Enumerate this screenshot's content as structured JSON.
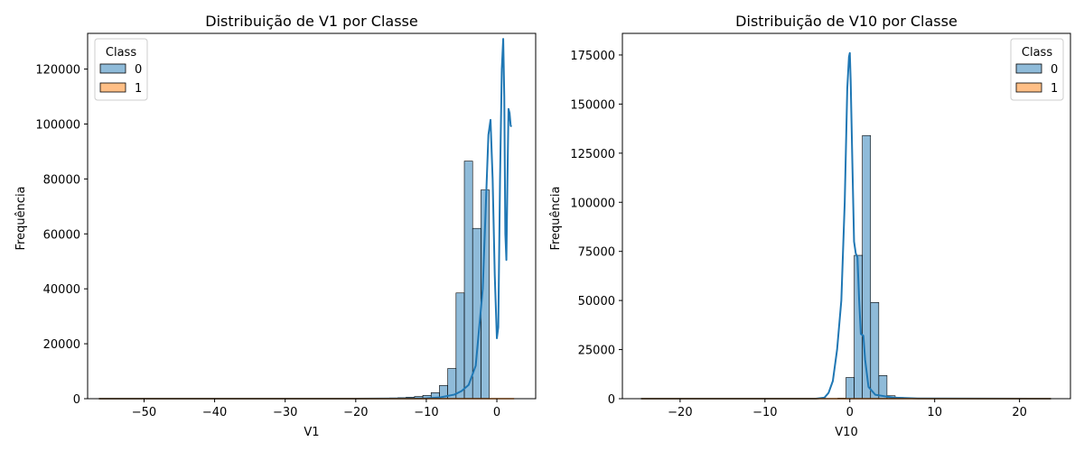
{
  "chart_data": [
    {
      "type": "bar",
      "title": "Distribuição de V1 por Classe",
      "xlabel": "V1",
      "ylabel": "Frequência",
      "xlim": [
        -58,
        5.5
      ],
      "ylim": [
        0,
        133000
      ],
      "xticks": [
        -50,
        -40,
        -30,
        -20,
        -10,
        0
      ],
      "yticks": [
        0,
        20000,
        40000,
        60000,
        80000,
        100000,
        120000
      ],
      "legend": {
        "title": "Class",
        "position": "top-left",
        "entries": [
          "0",
          "1"
        ]
      },
      "colors": {
        "0": "#1f77b4",
        "1": "#ff7f0e"
      },
      "bin_range": [
        -56.4,
        2.45
      ],
      "bin_count": 50,
      "series": [
        {
          "name": "0",
          "values": [
            1,
            1,
            1,
            1,
            1,
            1,
            1,
            1,
            1,
            1,
            1,
            1,
            1,
            1,
            1,
            1,
            1,
            2,
            2,
            3,
            3,
            4,
            5,
            6,
            8,
            10,
            14,
            18,
            25,
            35,
            50,
            70,
            95,
            130,
            180,
            260,
            380,
            550,
            800,
            1200,
            2200,
            4800,
            11000,
            38500,
            86500,
            62000,
            76000,
            0,
            0,
            0
          ]
        },
        {
          "name": "1",
          "values": [
            0,
            0,
            0,
            0,
            0,
            0,
            0,
            0,
            0,
            0,
            0,
            0,
            0,
            0,
            0,
            0,
            0,
            0,
            0,
            0,
            0,
            0,
            0,
            0,
            0,
            0,
            0,
            0,
            0,
            0,
            0,
            0,
            0,
            0,
            0,
            0,
            0,
            0,
            5,
            10,
            20,
            30,
            40,
            60,
            80,
            90,
            100,
            0,
            0,
            0
          ]
        }
      ],
      "kde_points": [
        [
          -56.4,
          0
        ],
        [
          -20,
          0
        ],
        [
          -10,
          120
        ],
        [
          -8,
          500
        ],
        [
          -6,
          1500
        ],
        [
          -5,
          2800
        ],
        [
          -4,
          5000
        ],
        [
          -3,
          12000
        ],
        [
          -2,
          40000
        ],
        [
          -1.5,
          75000
        ],
        [
          -1.2,
          96000
        ],
        [
          -0.9,
          101500
        ],
        [
          -0.6,
          80000
        ],
        [
          -0.3,
          45000
        ],
        [
          0,
          22000
        ],
        [
          0.2,
          26000
        ],
        [
          0.45,
          80000
        ],
        [
          0.7,
          120000
        ],
        [
          0.9,
          131000
        ],
        [
          1.05,
          110000
        ],
        [
          1.2,
          60000
        ],
        [
          1.35,
          50500
        ],
        [
          1.5,
          80000
        ],
        [
          1.65,
          105500
        ],
        [
          1.8,
          104000
        ],
        [
          1.95,
          99500
        ],
        [
          2.05,
          99000
        ]
      ]
    },
    {
      "type": "bar",
      "title": "Distribuição de V10 por Classe",
      "xlabel": "V10",
      "ylabel": "Frequência",
      "xlim": [
        -26.8,
        26.0
      ],
      "ylim": [
        0,
        186000
      ],
      "xticks": [
        -20,
        -10,
        0,
        10,
        20
      ],
      "yticks": [
        0,
        25000,
        50000,
        75000,
        100000,
        125000,
        150000,
        175000
      ],
      "legend": {
        "title": "Class",
        "position": "top-right",
        "entries": [
          "0",
          "1"
        ]
      },
      "colors": {
        "0": "#1f77b4",
        "1": "#ff7f0e"
      },
      "bin_range": [
        -24.6,
        23.7
      ],
      "bin_count": 50,
      "series": [
        {
          "name": "0",
          "values": [
            1,
            1,
            1,
            1,
            1,
            1,
            1,
            1,
            1,
            1,
            1,
            1,
            1,
            1,
            1,
            1,
            1,
            1,
            1,
            1,
            1,
            2,
            3,
            5,
            250,
            10800,
            73000,
            134000,
            49000,
            11800,
            1500,
            600,
            250,
            120,
            60,
            30,
            15,
            8,
            5,
            3,
            2,
            1,
            1,
            1,
            1,
            1,
            1,
            1,
            1,
            1
          ]
        },
        {
          "name": "1",
          "values": [
            0,
            0,
            0,
            0,
            0,
            0,
            0,
            0,
            0,
            0,
            0,
            0,
            0,
            0,
            0,
            0,
            0,
            0,
            0,
            0,
            0,
            5,
            10,
            20,
            40,
            60,
            80,
            60,
            30,
            15,
            5,
            0,
            0,
            0,
            0,
            0,
            0,
            0,
            0,
            0,
            0,
            0,
            0,
            0,
            0,
            0,
            0,
            0,
            0,
            0
          ]
        }
      ],
      "kde_points": [
        [
          -24.6,
          0
        ],
        [
          -4,
          0
        ],
        [
          -3,
          500
        ],
        [
          -2.5,
          3000
        ],
        [
          -2,
          9000
        ],
        [
          -1.5,
          25000
        ],
        [
          -1,
          50000
        ],
        [
          -0.6,
          100000
        ],
        [
          -0.3,
          158000
        ],
        [
          -0.1,
          174000
        ],
        [
          0,
          176000
        ],
        [
          0.1,
          162000
        ],
        [
          0.3,
          120000
        ],
        [
          0.5,
          80000
        ],
        [
          0.7,
          74000
        ],
        [
          0.9,
          72000
        ],
        [
          1.1,
          50000
        ],
        [
          1.3,
          33000
        ],
        [
          1.6,
          32000
        ],
        [
          1.8,
          20000
        ],
        [
          2.2,
          6000
        ],
        [
          3,
          2000
        ],
        [
          5,
          600
        ],
        [
          8,
          100
        ],
        [
          23.7,
          0
        ]
      ]
    }
  ]
}
